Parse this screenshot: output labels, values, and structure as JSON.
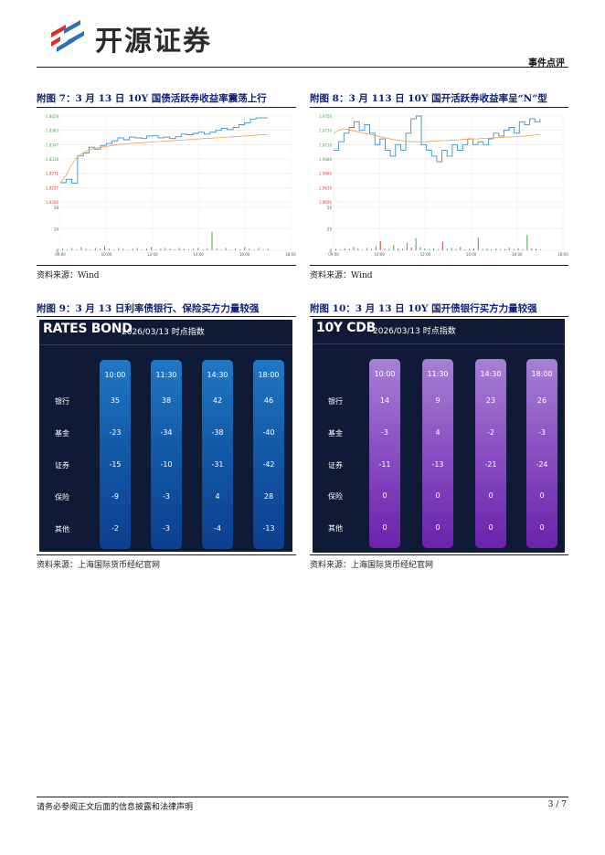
{
  "header": {
    "logo_text": "开源证券",
    "tag": "事件点评"
  },
  "figures": [
    {
      "title": "附图 7：3 月 13 日 10Y 国债活跃券收益率震荡上行",
      "source": "资料来源：Wind",
      "chart_data": {
        "type": "line",
        "y_ticks": [
          "1.8428",
          "1.8383",
          "1.8347",
          "1.8318",
          "1.8271",
          "1.8237",
          "1.8200"
        ],
        "volume_ticks": [
          "28",
          "14",
          "0"
        ],
        "x_ticks": [
          "09:00",
          "10:00",
          "12:00",
          "14:00",
          "16:00",
          "18:00"
        ],
        "series": [
          {
            "values": [
              1.8251,
              1.826,
              1.825,
              1.8322,
              1.833,
              1.8345,
              1.834,
              1.835,
              1.8355,
              1.8362,
              1.837,
              1.8365,
              1.8372,
              1.837,
              1.8368,
              1.8375,
              1.8376,
              1.837,
              1.8372,
              1.8368,
              1.8373,
              1.838,
              1.8378,
              1.8382,
              1.8385,
              1.838,
              1.8385,
              1.839,
              1.8395,
              1.8392,
              1.8398,
              1.8405,
              1.841,
              1.842,
              1.8423,
              1.8423,
              1.8423
            ]
          },
          {
            "values": [
              1.8251,
              1.827,
              1.83,
              1.832,
              1.833,
              1.8338,
              1.8342,
              1.8345,
              1.8347,
              1.835,
              1.8352,
              1.8354,
              1.8355,
              1.8356,
              1.8357,
              1.8358,
              1.8359,
              1.836,
              1.8361,
              1.8362,
              1.8363,
              1.8364,
              1.8365,
              1.8366,
              1.8367,
              1.8368,
              1.8369,
              1.837,
              1.8371,
              1.8372,
              1.8373,
              1.8374,
              1.8375,
              1.8376,
              1.8377,
              1.8378,
              1.8379
            ]
          }
        ],
        "volume": [
          2,
          1,
          3,
          1,
          4,
          2,
          1,
          3,
          2,
          5,
          2,
          1,
          3,
          2,
          1,
          2,
          3,
          1,
          2,
          4,
          1,
          2,
          3,
          2,
          1,
          3,
          2,
          1,
          2,
          3,
          1,
          2,
          24,
          2,
          1,
          3,
          1,
          2,
          1,
          4,
          2,
          1,
          3,
          1,
          2
        ]
      }
    },
    {
      "title": "附图 8：3 月 113 日 10Y 国开活跃券收益率呈“N”型",
      "source": "资料来源：Wind",
      "chart_data": {
        "type": "line",
        "y_ticks": [
          "1.9750",
          "1.9730",
          "1.9718",
          "1.9688",
          "1.9660",
          "1.9639",
          "1.9600"
        ],
        "volume_ticks": [
          "50",
          "25",
          "0"
        ],
        "x_ticks": [
          "09:00",
          "10:00",
          "12:00",
          "14:00",
          "16:00",
          "18:00"
        ],
        "series": [
          {
            "values": [
              1.969,
              1.9705,
              1.972,
              1.973,
              1.974,
              1.9725,
              1.9735,
              1.972,
              1.97,
              1.971,
              1.969,
              1.968,
              1.97,
              1.969,
              1.972,
              1.9745,
              1.975,
              1.97,
              1.969,
              1.968,
              1.967,
              1.969,
              1.968,
              1.97,
              1.969,
              1.97,
              1.971,
              1.97,
              1.9705,
              1.97,
              1.971,
              1.972,
              1.9715,
              1.9725,
              1.973,
              1.972,
              1.974,
              1.9735,
              1.9745,
              1.974,
              1.9745
            ]
          },
          {
            "values": [
              1.972,
              1.9725,
              1.9728,
              1.9726,
              1.9724,
              1.9722,
              1.972,
              1.9718,
              1.9716,
              1.9714,
              1.9712,
              1.971,
              1.9708,
              1.9707,
              1.9706,
              1.9705,
              1.9705,
              1.9705,
              1.9705,
              1.9706,
              1.9706,
              1.9707,
              1.9707,
              1.9708,
              1.9708,
              1.9709,
              1.9709,
              1.971,
              1.971,
              1.9711,
              1.9711,
              1.9712,
              1.9712,
              1.9713,
              1.9713,
              1.9714,
              1.9714,
              1.9715,
              1.9716,
              1.9717,
              1.9718
            ]
          }
        ],
        "volume": [
          3,
          2,
          5,
          3,
          8,
          4,
          2,
          6,
          3,
          9,
          22,
          4,
          3,
          12,
          5,
          3,
          18,
          6,
          28,
          7,
          4,
          3,
          5,
          2,
          20,
          4,
          6,
          3,
          8,
          2,
          3,
          4,
          30,
          3,
          5,
          2,
          4,
          3,
          2,
          6,
          3,
          5,
          2,
          36,
          4,
          3,
          2
        ]
      }
    }
  ],
  "tables": [
    {
      "title": "附图 9：3 月 13 日利率债银行、保险买方力量较强",
      "source": "资料来源：上海国际货币经纪官网",
      "panel_title": "RATES BOND",
      "panel_subtitle": "2026/03/13 时点指数",
      "columns": [
        "10:00",
        "11:30",
        "14:30",
        "18:00"
      ],
      "rows": [
        {
          "label": "银行",
          "values": [
            "35",
            "38",
            "42",
            "46"
          ]
        },
        {
          "label": "基金",
          "values": [
            "-23",
            "-34",
            "-38",
            "-40"
          ]
        },
        {
          "label": "证券",
          "values": [
            "-15",
            "-10",
            "-31",
            "-42"
          ]
        },
        {
          "label": "保险",
          "values": [
            "-9",
            "-3",
            "4",
            "28"
          ]
        },
        {
          "label": "其他",
          "values": [
            "-2",
            "-3",
            "-4",
            "-13"
          ]
        }
      ]
    },
    {
      "title": "附图 10：3 月 13 日 10Y 国开债银行买方力量较强",
      "source": "资料来源：上海国际货币经纪官网",
      "panel_title": "10Y CDB",
      "panel_subtitle": "2026/03/13 时点指数",
      "columns": [
        "10:00",
        "11:30",
        "14:30",
        "18:00"
      ],
      "rows": [
        {
          "label": "银行",
          "values": [
            "14",
            "9",
            "23",
            "26"
          ]
        },
        {
          "label": "基金",
          "values": [
            "-3",
            "4",
            "-2",
            "-3"
          ]
        },
        {
          "label": "证券",
          "values": [
            "-11",
            "-13",
            "-21",
            "-24"
          ]
        },
        {
          "label": "保险",
          "values": [
            "0",
            "0",
            "0",
            "0"
          ]
        },
        {
          "label": "其他",
          "values": [
            "0",
            "0",
            "0",
            "0"
          ]
        }
      ]
    }
  ],
  "colors": {
    "line_main": "#3a8fc4",
    "line_avg": "#f0a04a",
    "volume_green": "#3aa84a",
    "volume_red": "#d23a3a"
  },
  "footer": {
    "disclaimer": "请务必参阅正文后面的信息披露和法律声明",
    "page": "3 / 7"
  }
}
